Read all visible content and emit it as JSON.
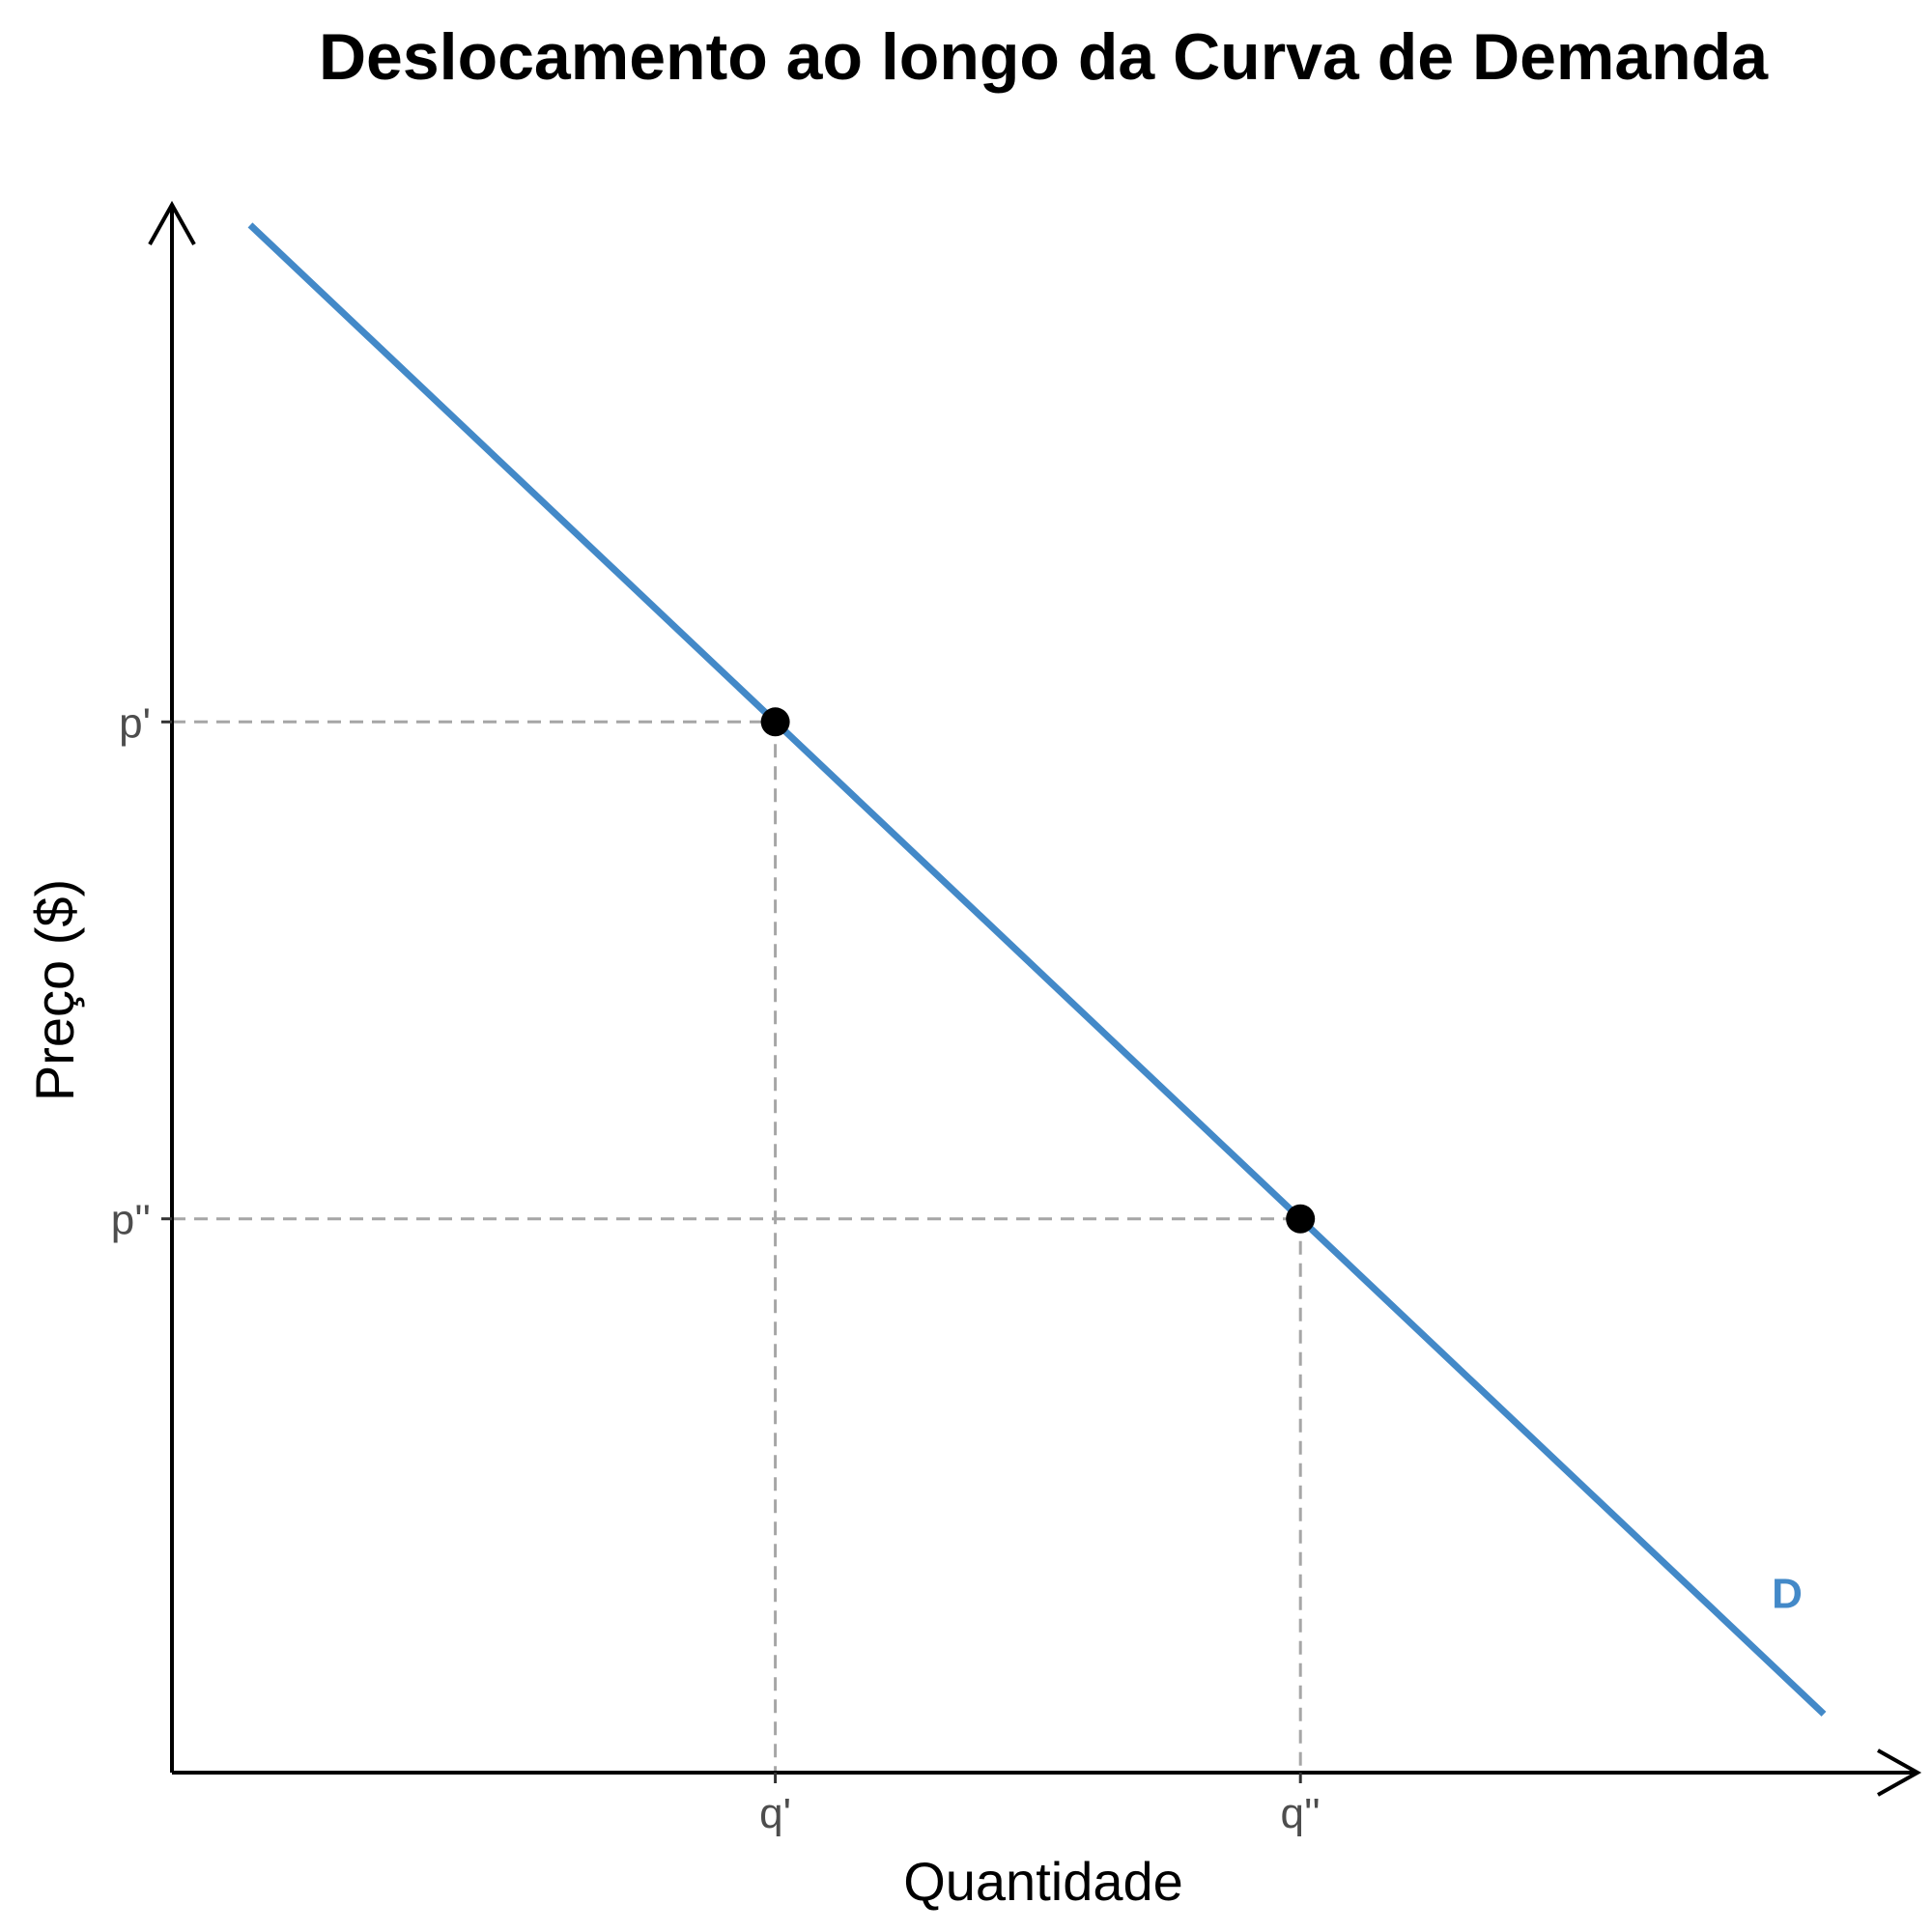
{
  "chart_data": {
    "type": "line",
    "title": "Deslocamento ao longo da Curva de Demanda",
    "xlabel": "Quantidade",
    "ylabel": "Preço ($)",
    "xlim": [
      0,
      10
    ],
    "ylim": [
      0,
      10
    ],
    "grid": false,
    "series": [
      {
        "name": "D",
        "color": "#4389c8",
        "x": [
          0.45,
          9.5
        ],
        "y": [
          9.25,
          0.35
        ]
      }
    ],
    "points": [
      {
        "x": 3.47,
        "y": 6.28
      },
      {
        "x": 6.49,
        "y": 3.31
      }
    ],
    "x_ticks": [
      {
        "value": 3.47,
        "label": "q'"
      },
      {
        "value": 6.49,
        "label": "q''"
      }
    ],
    "y_ticks": [
      {
        "value": 6.28,
        "label": "p'"
      },
      {
        "value": 3.31,
        "label": "p''"
      }
    ],
    "reference_lines": "dashed",
    "colors": {
      "curve": "#4389c8",
      "point": "#000000",
      "reference": "#a6a6a6",
      "axis": "#000000"
    }
  }
}
